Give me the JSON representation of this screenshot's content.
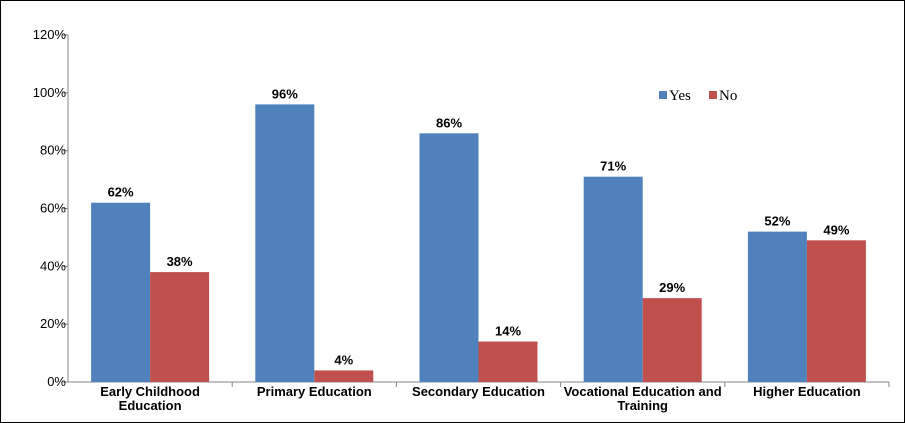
{
  "chart_data": {
    "type": "bar",
    "title": "",
    "xlabel": "",
    "ylabel": "",
    "categories": [
      [
        "Early Childhood",
        "Education"
      ],
      [
        "Primary Education"
      ],
      [
        "Secondary Education"
      ],
      [
        "Vocational Education and",
        "Training"
      ],
      [
        "Higher Education"
      ]
    ],
    "series": [
      {
        "name": "Yes",
        "color": "#4f81bd",
        "values": [
          62,
          96,
          86,
          71,
          52
        ],
        "labels": [
          "62%",
          "96%",
          "86%",
          "71%",
          "52%"
        ]
      },
      {
        "name": "No",
        "color": "#c0504d",
        "values": [
          38,
          4,
          14,
          29,
          49
        ],
        "labels": [
          "38%",
          "4%",
          "14%",
          "29%",
          "49%"
        ]
      }
    ],
    "ylim": [
      0,
      120
    ],
    "yticks": [
      0,
      20,
      40,
      60,
      80,
      100,
      120
    ],
    "ytick_labels": [
      "0%",
      "20%",
      "40%",
      "60%",
      "80%",
      "100%",
      "120%"
    ],
    "grid": false,
    "legend_position": "top-right"
  }
}
